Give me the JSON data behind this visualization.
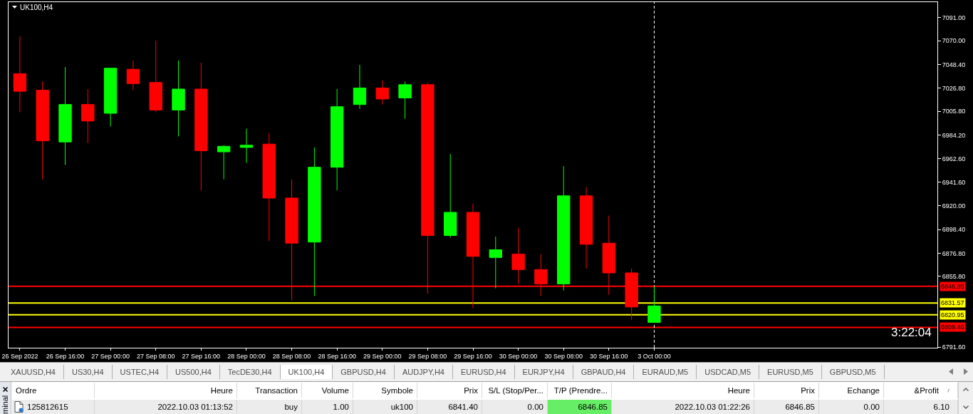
{
  "chart_data": [
    {
      "type": "candlestick",
      "title": "UK100,H4",
      "categories": [
        "26 Sep 2022",
        null,
        "26 Sep 16:00",
        null,
        "27 Sep 00:00",
        null,
        "27 Sep 08:00",
        null,
        "27 Sep 16:00",
        null,
        "28 Sep 00:00",
        null,
        "28 Sep 08:00",
        null,
        "28 Sep 16:00",
        null,
        "29 Sep 00:00",
        null,
        "29 Sep 08:00",
        null,
        "29 Sep 16:00",
        null,
        "30 Sep 00:00",
        null,
        "30 Sep 08:00",
        null,
        "30 Sep 16:00",
        null,
        "3 Oct 00:00",
        null,
        null,
        null,
        null,
        null,
        null,
        null,
        null,
        null,
        null,
        null,
        null
      ],
      "ohlc": [
        [
          7040,
          7074,
          7005,
          7024
        ],
        [
          7025,
          7033,
          6944,
          6979
        ],
        [
          6978,
          7046,
          6957,
          7012
        ],
        [
          7012,
          7026,
          6977,
          6997
        ],
        [
          7004,
          7045,
          6992,
          7045
        ],
        [
          7044,
          7052,
          7025,
          7031
        ],
        [
          7032,
          7070,
          7005,
          7007
        ],
        [
          7007,
          7052,
          6983,
          7026
        ],
        [
          7026,
          7050,
          6934,
          6970
        ],
        [
          6969,
          6975,
          6944,
          6974
        ],
        [
          6973,
          6990,
          6959,
          6975
        ],
        [
          6976,
          6986,
          6888,
          6927
        ],
        [
          6927,
          6944,
          6834,
          6886
        ],
        [
          6887,
          6973,
          6838,
          6955
        ],
        [
          6955,
          7026,
          6934,
          7010
        ],
        [
          7012,
          7048,
          7008,
          7027
        ],
        [
          7027,
          7034,
          7012,
          7017
        ],
        [
          7018,
          7033,
          6999,
          7030
        ],
        [
          7030,
          7032,
          6840,
          6893
        ],
        [
          6893,
          6967,
          6891,
          6914
        ],
        [
          6914,
          6922,
          6827,
          6874
        ],
        [
          6873,
          6892,
          6845,
          6880
        ],
        [
          6876,
          6900,
          6849,
          6862
        ],
        [
          6862,
          6876,
          6838,
          6849
        ],
        [
          6849,
          6956,
          6843,
          6929
        ],
        [
          6929,
          6937,
          6863,
          6885
        ],
        [
          6886,
          6911,
          6839,
          6859
        ],
        [
          6859,
          6863,
          6816,
          6828
        ],
        [
          6814,
          6847,
          6814,
          6829
        ],
        null,
        null,
        null,
        null,
        null,
        null,
        null,
        null,
        null,
        null,
        null,
        null
      ],
      "colors": [
        "#ff0000",
        "#ff0000",
        "#00ff00",
        "#ff0000",
        "#00ff00",
        "#ff0000",
        "#ff0000",
        "#00ff00",
        "#ff0000",
        "#00ff00",
        "#00ff00",
        "#ff0000",
        "#ff0000",
        "#00ff00",
        "#00ff00",
        "#00ff00",
        "#ff0000",
        "#00ff00",
        "#ff0000",
        "#00ff00",
        "#ff0000",
        "#00ff00",
        "#ff0000",
        "#ff0000",
        "#00ff00",
        "#ff0000",
        "#ff0000",
        "#ff0000",
        "#00ff00",
        null,
        null,
        null,
        null,
        null,
        null,
        null,
        null,
        null,
        null,
        null,
        null
      ],
      "ylim": [
        6791,
        7105
      ],
      "yticks": [
        {
          "value": 7091,
          "label": "7091.00"
        },
        {
          "value": 7070,
          "label": "7070.00"
        },
        {
          "value": 7048.4,
          "label": "7048.40"
        },
        {
          "value": 7026.8,
          "label": "7026.80"
        },
        {
          "value": 7005.8,
          "label": "7005.80"
        },
        {
          "value": 6984.2,
          "label": "6984.20"
        },
        {
          "value": 6962.6,
          "label": "6962.60"
        },
        {
          "value": 6941.6,
          "label": "6941.60"
        },
        {
          "value": 6920,
          "label": "6920.00"
        },
        {
          "value": 6898.4,
          "label": "6898.40"
        },
        {
          "value": 6876.8,
          "label": "6876.80"
        },
        {
          "value": 6855.8,
          "label": "6855.80"
        },
        {
          "value": 6791.6,
          "label": "6791.60"
        }
      ],
      "ref_lines": [
        {
          "axis": "y",
          "value": 6846.85,
          "label": "6846.85",
          "color": "#ff0000"
        },
        {
          "axis": "y",
          "value": 6831.57,
          "label": "6831.57",
          "color": "#ffff00"
        },
        {
          "axis": "y",
          "value": 6820.95,
          "label": "6820.95",
          "color": "#ffff00"
        },
        {
          "axis": "y",
          "value": 6809.46,
          "label": "6809.46",
          "color": "#ff0000"
        },
        {
          "axis": "x",
          "value": "3 Oct 00:00",
          "color": "#ffffff",
          "line_style": "dashed"
        }
      ],
      "annotations": [
        "3:22:04"
      ]
    },
    {
      "type": "other",
      "annotations": [
        "XAUUSD,H4",
        "US30,H4",
        "USTEC,H4",
        "US500,H4",
        "TecDE30,H4",
        "UK100,H4",
        "GBPUSD,H4",
        "AUDJPY,H4",
        "EURUSD,H4",
        "EURJPY,H4",
        "GBPAUD,H4",
        "EURAUD,M5",
        "USDCAD,M5",
        "EURUSD,M5",
        "GBPUSD,M5"
      ],
      "colors": [
        "#f0f0f0",
        "#f0f0f0",
        "#f0f0f0",
        "#f0f0f0",
        "#f0f0f0",
        "#ffffff",
        "#f0f0f0",
        "#f0f0f0",
        "#f0f0f0",
        "#f0f0f0",
        "#f0f0f0",
        "#f0f0f0",
        "#f0f0f0",
        "#f0f0f0",
        "#f0f0f0"
      ]
    },
    {
      "type": "other",
      "categories": [
        "Ordre",
        "Heure",
        "Transaction",
        "Volume",
        "Symbole",
        "Prix",
        "S/L (Stop/Per...",
        "T/P (Prendre...",
        "Heure",
        "Prix",
        "Echange",
        "&Profit"
      ]
    },
    {
      "type": "other",
      "title": "minal",
      "categories": [
        "125812615",
        "2022.10.03 01:13:52",
        "buy",
        "1.00",
        "uk100",
        "6841.40",
        "0.00",
        "6846.85",
        "2022.10.03 01:22:26",
        "6846.85",
        "0.00",
        "6.10"
      ],
      "colors": [
        null,
        null,
        null,
        null,
        null,
        null,
        null,
        "#66ee66",
        null,
        null,
        null,
        null
      ]
    }
  ]
}
